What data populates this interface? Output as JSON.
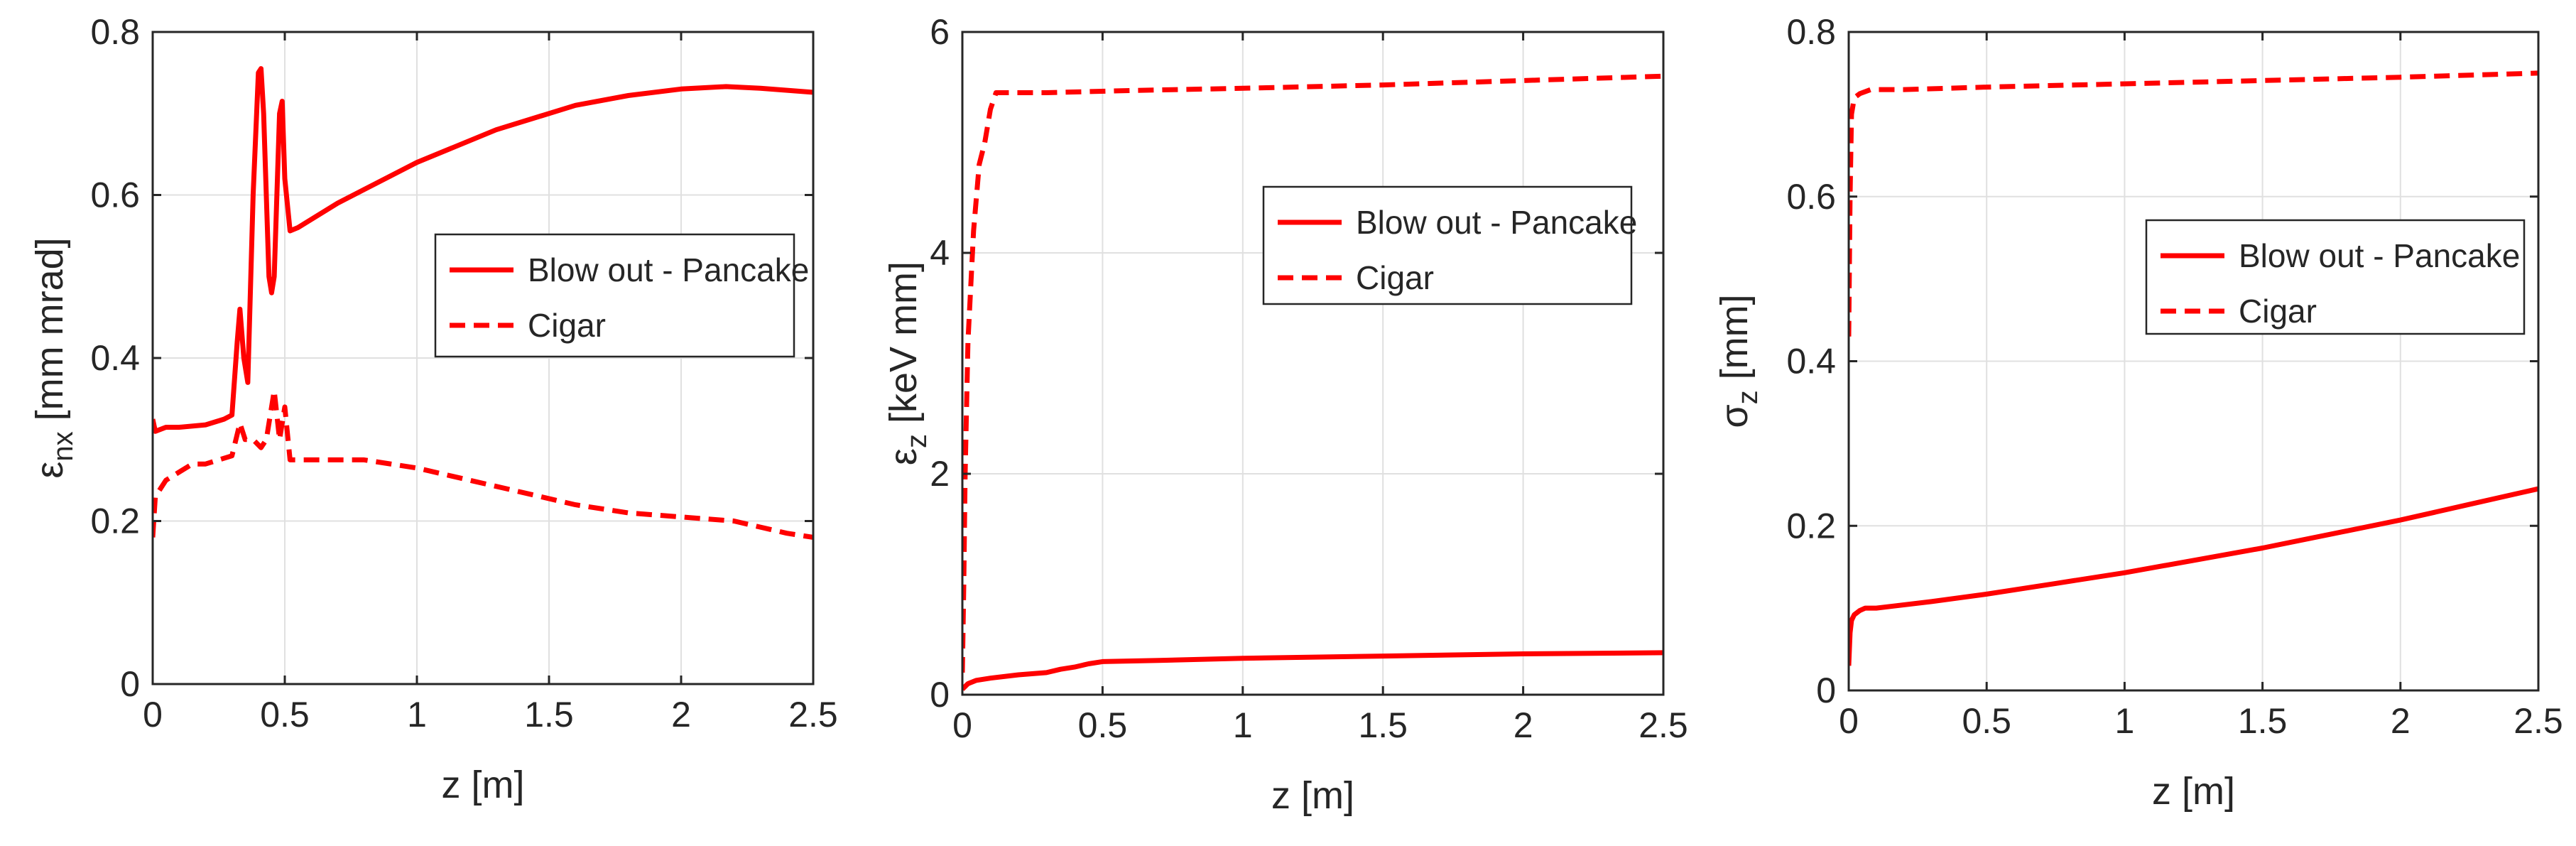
{
  "figure": {
    "background": "#ffffff",
    "axis_color": "#262626",
    "grid_color": "#e0e0e0",
    "line_color": "#ff0000"
  },
  "chart_data": [
    {
      "type": "line",
      "xlabel": "z [m]",
      "ylabel_symbol": "ε",
      "ylabel_sub": "nx",
      "ylabel_rest": "[mm mrad]",
      "xlim": [
        0,
        2.5
      ],
      "ylim": [
        0,
        0.8
      ],
      "xticks": [
        0,
        0.5,
        1,
        1.5,
        2,
        2.5
      ],
      "xtick_labels": [
        "0",
        "0.5",
        "1",
        "1.5",
        "2",
        "2.5"
      ],
      "yticks": [
        0,
        0.2,
        0.4,
        0.6,
        0.8
      ],
      "ytick_labels": [
        "0",
        "0.2",
        "0.4",
        "0.6",
        "0.8"
      ],
      "grid": true,
      "legend_position": "center-right",
      "series": [
        {
          "name": "Blow out - Pancake",
          "style": "solid",
          "x": [
            0,
            0.01,
            0.05,
            0.1,
            0.2,
            0.27,
            0.3,
            0.32,
            0.33,
            0.345,
            0.36,
            0.38,
            0.4,
            0.41,
            0.42,
            0.44,
            0.45,
            0.46,
            0.48,
            0.49,
            0.5,
            0.52,
            0.55,
            0.7,
            1.0,
            1.3,
            1.6,
            1.8,
            2.0,
            2.17,
            2.3,
            2.5
          ],
          "y": [
            0.325,
            0.31,
            0.315,
            0.315,
            0.318,
            0.325,
            0.33,
            0.42,
            0.46,
            0.4,
            0.37,
            0.6,
            0.75,
            0.755,
            0.7,
            0.5,
            0.48,
            0.5,
            0.7,
            0.715,
            0.62,
            0.556,
            0.56,
            0.59,
            0.64,
            0.68,
            0.71,
            0.722,
            0.73,
            0.733,
            0.731,
            0.726
          ]
        },
        {
          "name": "Cigar",
          "style": "dashed",
          "x": [
            0,
            0.01,
            0.05,
            0.1,
            0.15,
            0.2,
            0.25,
            0.3,
            0.33,
            0.35,
            0.38,
            0.41,
            0.43,
            0.46,
            0.48,
            0.5,
            0.52,
            0.6,
            0.8,
            1.0,
            1.2,
            1.4,
            1.6,
            1.8,
            2.0,
            2.2,
            2.4,
            2.5
          ],
          "y": [
            0.18,
            0.23,
            0.25,
            0.26,
            0.27,
            0.27,
            0.275,
            0.28,
            0.32,
            0.3,
            0.3,
            0.29,
            0.3,
            0.36,
            0.3,
            0.34,
            0.275,
            0.275,
            0.275,
            0.265,
            0.25,
            0.235,
            0.22,
            0.21,
            0.205,
            0.2,
            0.185,
            0.18
          ]
        }
      ]
    },
    {
      "type": "line",
      "xlabel": "z [m]",
      "ylabel_symbol": "ε",
      "ylabel_sub": "z",
      "ylabel_rest": "[keV mm]",
      "xlim": [
        0,
        2.5
      ],
      "ylim": [
        0,
        6
      ],
      "xticks": [
        0,
        0.5,
        1,
        1.5,
        2,
        2.5
      ],
      "xtick_labels": [
        "0",
        "0.5",
        "1",
        "1.5",
        "2",
        "2.5"
      ],
      "yticks": [
        0,
        2,
        4,
        6
      ],
      "ytick_labels": [
        "0",
        "2",
        "4",
        "6"
      ],
      "grid": true,
      "legend_position": "top-right",
      "series": [
        {
          "name": "Blow out - Pancake",
          "style": "solid",
          "x": [
            0,
            0.02,
            0.05,
            0.1,
            0.2,
            0.3,
            0.35,
            0.4,
            0.45,
            0.5,
            0.7,
            1.0,
            1.5,
            2.0,
            2.5
          ],
          "y": [
            0.05,
            0.1,
            0.13,
            0.15,
            0.18,
            0.2,
            0.23,
            0.25,
            0.28,
            0.3,
            0.31,
            0.33,
            0.35,
            0.37,
            0.38
          ]
        },
        {
          "name": "Cigar",
          "style": "dashed",
          "x": [
            0,
            0.005,
            0.01,
            0.02,
            0.04,
            0.06,
            0.08,
            0.1,
            0.12,
            0.3,
            0.6,
            1.0,
            1.5,
            2.0,
            2.5
          ],
          "y": [
            0.2,
            1.0,
            2.0,
            3.2,
            4.2,
            4.8,
            5.0,
            5.3,
            5.45,
            5.45,
            5.47,
            5.49,
            5.52,
            5.56,
            5.6
          ]
        }
      ]
    },
    {
      "type": "line",
      "xlabel": "z [m]",
      "ylabel_symbol": "σ",
      "ylabel_sub": "z",
      "ylabel_rest": "[mm]",
      "xlim": [
        0,
        2.5
      ],
      "ylim": [
        0,
        0.8
      ],
      "xticks": [
        0,
        0.5,
        1,
        1.5,
        2,
        2.5
      ],
      "xtick_labels": [
        "0",
        "0.5",
        "1",
        "1.5",
        "2",
        "2.5"
      ],
      "yticks": [
        0,
        0.2,
        0.4,
        0.6,
        0.8
      ],
      "ytick_labels": [
        "0",
        "0.2",
        "0.4",
        "0.6",
        "0.8"
      ],
      "grid": true,
      "legend_position": "center-right",
      "series": [
        {
          "name": "Blow out - Pancake",
          "style": "solid",
          "x": [
            0,
            0.005,
            0.01,
            0.02,
            0.04,
            0.06,
            0.1,
            0.3,
            0.5,
            0.75,
            1.0,
            1.25,
            1.5,
            1.75,
            2.0,
            2.25,
            2.5
          ],
          "y": [
            0.03,
            0.07,
            0.085,
            0.092,
            0.097,
            0.1,
            0.1,
            0.108,
            0.117,
            0.13,
            0.143,
            0.158,
            0.173,
            0.19,
            0.207,
            0.226,
            0.245
          ]
        },
        {
          "name": "Cigar",
          "style": "dashed",
          "x": [
            0,
            0.005,
            0.01,
            0.02,
            0.04,
            0.08,
            0.2,
            0.5,
            1.0,
            1.5,
            2.0,
            2.5
          ],
          "y": [
            0.43,
            0.6,
            0.7,
            0.72,
            0.725,
            0.73,
            0.73,
            0.733,
            0.737,
            0.741,
            0.745,
            0.75
          ]
        }
      ]
    }
  ]
}
